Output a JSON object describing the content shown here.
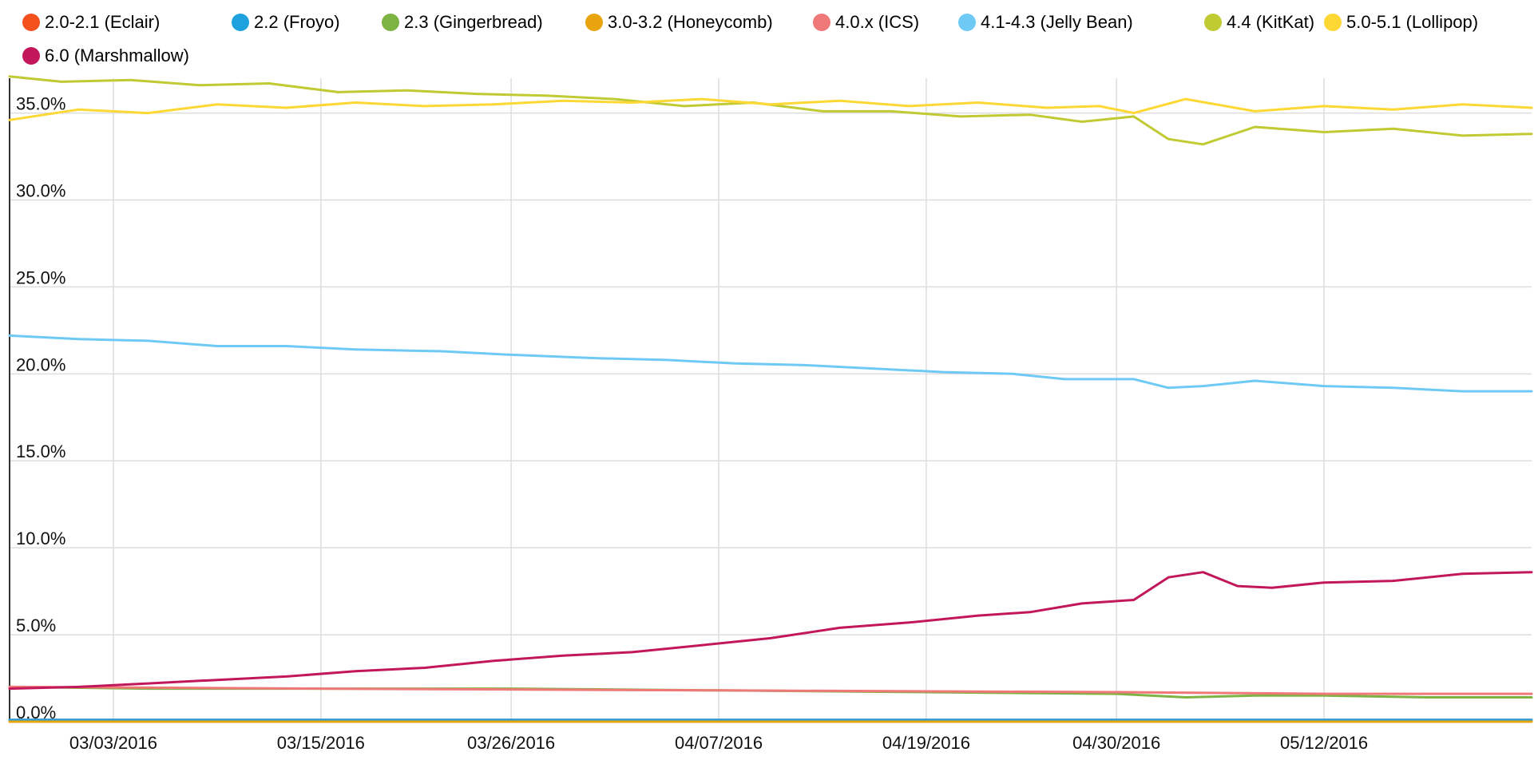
{
  "chart_data": {
    "type": "line",
    "title": "",
    "xlabel": "",
    "ylabel": "",
    "ylim": [
      0,
      37
    ],
    "y_ticks": [
      "0.0%",
      "5.0%",
      "10.0%",
      "15.0%",
      "20.0%",
      "25.0%",
      "30.0%",
      "35.0%"
    ],
    "y_tick_values": [
      0,
      5,
      10,
      15,
      20,
      25,
      30,
      35
    ],
    "x_ticks": [
      "03/03/2016",
      "03/15/2016",
      "03/26/2016",
      "04/07/2016",
      "04/19/2016",
      "04/30/2016",
      "05/12/2016"
    ],
    "x_range": [
      "2016-02-26",
      "2016-05-24"
    ],
    "grid": true,
    "legend_position": "top",
    "series": [
      {
        "name": "2.0-2.1 (Eclair)",
        "color": "#f4511e",
        "points": [
          [
            "2016-02-26",
            0.1
          ],
          [
            "2016-05-24",
            0.1
          ]
        ]
      },
      {
        "name": "2.2 (Froyo)",
        "color": "#1fa1dd",
        "points": [
          [
            "2016-02-26",
            0.1
          ],
          [
            "2016-05-24",
            0.1
          ]
        ]
      },
      {
        "name": "2.3 (Gingerbread)",
        "color": "#7cb342",
        "points": [
          [
            "2016-02-26",
            2.0
          ],
          [
            "2016-03-05",
            1.9
          ],
          [
            "2016-03-16",
            1.9
          ],
          [
            "2016-03-26",
            1.9
          ],
          [
            "2016-04-07",
            1.8
          ],
          [
            "2016-04-19",
            1.7
          ],
          [
            "2016-04-30",
            1.6
          ],
          [
            "2016-05-04",
            1.4
          ],
          [
            "2016-05-08",
            1.5
          ],
          [
            "2016-05-12",
            1.5
          ],
          [
            "2016-05-18",
            1.4
          ],
          [
            "2016-05-24",
            1.4
          ]
        ]
      },
      {
        "name": "3.0-3.2 (Honeycomb)",
        "color": "#e8a30f",
        "points": [
          [
            "2016-02-26",
            0.0
          ],
          [
            "2016-05-24",
            0.0
          ]
        ]
      },
      {
        "name": "4.0.x (ICS)",
        "color": "#ef7878",
        "points": [
          [
            "2016-02-26",
            2.0
          ],
          [
            "2016-03-15",
            1.9
          ],
          [
            "2016-04-07",
            1.8
          ],
          [
            "2016-04-30",
            1.7
          ],
          [
            "2016-05-12",
            1.6
          ],
          [
            "2016-05-24",
            1.6
          ]
        ]
      },
      {
        "name": "4.1-4.3 (Jelly Bean)",
        "color": "#6ecaf5",
        "points": [
          [
            "2016-02-26",
            22.2
          ],
          [
            "2016-03-01",
            22.0
          ],
          [
            "2016-03-05",
            21.9
          ],
          [
            "2016-03-09",
            21.6
          ],
          [
            "2016-03-13",
            21.6
          ],
          [
            "2016-03-17",
            21.4
          ],
          [
            "2016-03-22",
            21.3
          ],
          [
            "2016-03-26",
            21.1
          ],
          [
            "2016-03-31",
            20.9
          ],
          [
            "2016-04-04",
            20.8
          ],
          [
            "2016-04-08",
            20.6
          ],
          [
            "2016-04-12",
            20.5
          ],
          [
            "2016-04-16",
            20.3
          ],
          [
            "2016-04-20",
            20.1
          ],
          [
            "2016-04-24",
            20.0
          ],
          [
            "2016-04-27",
            19.7
          ],
          [
            "2016-05-01",
            19.7
          ],
          [
            "2016-05-03",
            19.2
          ],
          [
            "2016-05-05",
            19.3
          ],
          [
            "2016-05-08",
            19.6
          ],
          [
            "2016-05-12",
            19.3
          ],
          [
            "2016-05-16",
            19.2
          ],
          [
            "2016-05-20",
            19.0
          ],
          [
            "2016-05-24",
            19.0
          ]
        ]
      },
      {
        "name": "4.4 (KitKat)",
        "color": "#c0ca33",
        "points": [
          [
            "2016-02-26",
            37.1
          ],
          [
            "2016-02-29",
            36.8
          ],
          [
            "2016-03-04",
            36.9
          ],
          [
            "2016-03-08",
            36.6
          ],
          [
            "2016-03-12",
            36.7
          ],
          [
            "2016-03-16",
            36.2
          ],
          [
            "2016-03-20",
            36.3
          ],
          [
            "2016-03-24",
            36.1
          ],
          [
            "2016-03-28",
            36.0
          ],
          [
            "2016-04-01",
            35.8
          ],
          [
            "2016-04-05",
            35.4
          ],
          [
            "2016-04-09",
            35.6
          ],
          [
            "2016-04-13",
            35.1
          ],
          [
            "2016-04-17",
            35.1
          ],
          [
            "2016-04-21",
            34.8
          ],
          [
            "2016-04-25",
            34.9
          ],
          [
            "2016-04-28",
            34.5
          ],
          [
            "2016-05-01",
            34.8
          ],
          [
            "2016-05-03",
            33.5
          ],
          [
            "2016-05-05",
            33.2
          ],
          [
            "2016-05-08",
            34.2
          ],
          [
            "2016-05-12",
            33.9
          ],
          [
            "2016-05-16",
            34.1
          ],
          [
            "2016-05-20",
            33.7
          ],
          [
            "2016-05-24",
            33.8
          ]
        ]
      },
      {
        "name": "5.0-5.1 (Lollipop)",
        "color": "#fdd835",
        "points": [
          [
            "2016-02-26",
            34.6
          ],
          [
            "2016-03-01",
            35.2
          ],
          [
            "2016-03-05",
            35.0
          ],
          [
            "2016-03-09",
            35.5
          ],
          [
            "2016-03-13",
            35.3
          ],
          [
            "2016-03-17",
            35.6
          ],
          [
            "2016-03-21",
            35.4
          ],
          [
            "2016-03-25",
            35.5
          ],
          [
            "2016-03-29",
            35.7
          ],
          [
            "2016-04-02",
            35.6
          ],
          [
            "2016-04-06",
            35.8
          ],
          [
            "2016-04-10",
            35.5
          ],
          [
            "2016-04-14",
            35.7
          ],
          [
            "2016-04-18",
            35.4
          ],
          [
            "2016-04-22",
            35.6
          ],
          [
            "2016-04-26",
            35.3
          ],
          [
            "2016-04-29",
            35.4
          ],
          [
            "2016-05-01",
            35.0
          ],
          [
            "2016-05-04",
            35.8
          ],
          [
            "2016-05-08",
            35.1
          ],
          [
            "2016-05-12",
            35.4
          ],
          [
            "2016-05-16",
            35.2
          ],
          [
            "2016-05-20",
            35.5
          ],
          [
            "2016-05-24",
            35.3
          ]
        ]
      },
      {
        "name": "6.0 (Marshmallow)",
        "color": "#c2185b",
        "points": [
          [
            "2016-02-26",
            1.9
          ],
          [
            "2016-03-01",
            2.0
          ],
          [
            "2016-03-05",
            2.2
          ],
          [
            "2016-03-09",
            2.4
          ],
          [
            "2016-03-13",
            2.6
          ],
          [
            "2016-03-17",
            2.9
          ],
          [
            "2016-03-21",
            3.1
          ],
          [
            "2016-03-25",
            3.5
          ],
          [
            "2016-03-29",
            3.8
          ],
          [
            "2016-04-02",
            4.0
          ],
          [
            "2016-04-06",
            4.4
          ],
          [
            "2016-04-10",
            4.8
          ],
          [
            "2016-04-14",
            5.4
          ],
          [
            "2016-04-18",
            5.7
          ],
          [
            "2016-04-22",
            6.1
          ],
          [
            "2016-04-25",
            6.3
          ],
          [
            "2016-04-28",
            6.8
          ],
          [
            "2016-05-01",
            7.0
          ],
          [
            "2016-05-03",
            8.3
          ],
          [
            "2016-05-05",
            8.6
          ],
          [
            "2016-05-07",
            7.8
          ],
          [
            "2016-05-09",
            7.7
          ],
          [
            "2016-05-12",
            8.0
          ],
          [
            "2016-05-16",
            8.1
          ],
          [
            "2016-05-20",
            8.5
          ],
          [
            "2016-05-24",
            8.6
          ]
        ]
      }
    ]
  }
}
